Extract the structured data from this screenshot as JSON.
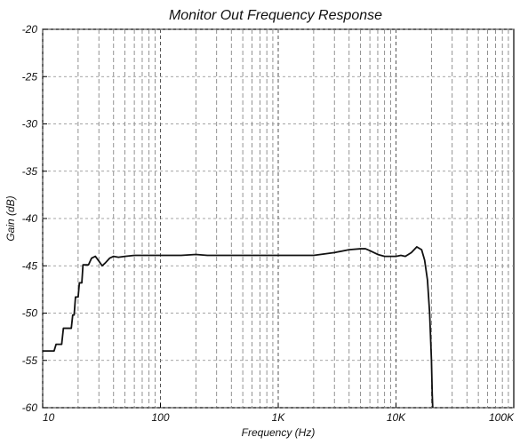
{
  "chart_data": {
    "type": "line",
    "title": "Monitor Out Frequency Response",
    "xlabel": "Frequency (Hz)",
    "ylabel": "Gain (dB)",
    "xscale": "log",
    "xlim": [
      10,
      100000
    ],
    "ylim": [
      -60,
      -20
    ],
    "grid": true,
    "x_ticks": [
      10,
      100,
      1000,
      10000,
      100000
    ],
    "x_tick_labels": [
      "10",
      "100",
      "1K",
      "10K",
      "100K"
    ],
    "y_ticks": [
      -20,
      -25,
      -30,
      -35,
      -40,
      -45,
      -50,
      -55,
      -60
    ],
    "y_tick_labels": [
      "-20",
      "-25",
      "-30",
      "-35",
      "-40",
      "-45",
      "-50",
      "-55",
      "-60"
    ],
    "series": [
      {
        "color": "#111111",
        "x": [
          10,
          12.5,
          13.0,
          14.5,
          15.0,
          16.5,
          17.5,
          18.0,
          18.5,
          19.0,
          20.0,
          20.5,
          21.5,
          22.0,
          23.0,
          24.5,
          26.0,
          28.0,
          30.0,
          32.0,
          34.0,
          37.0,
          40.0,
          44.0,
          50.0,
          60.0,
          80.0,
          100,
          150,
          200,
          250,
          300,
          500,
          1000,
          2000,
          3000,
          4000,
          5000,
          5500,
          6000,
          7000,
          8000,
          9000,
          10000,
          11000,
          12000,
          13500,
          15000,
          16500,
          17500,
          18500,
          19300,
          20000,
          20300,
          20500
        ],
        "y": [
          -54.0,
          -54.0,
          -53.3,
          -53.3,
          -51.6,
          -51.6,
          -51.6,
          -50.2,
          -50.2,
          -48.3,
          -48.3,
          -46.8,
          -46.8,
          -44.9,
          -44.9,
          -44.9,
          -44.2,
          -44.0,
          -44.5,
          -45.0,
          -44.7,
          -44.2,
          -44.0,
          -44.1,
          -44.0,
          -43.9,
          -43.9,
          -43.9,
          -43.9,
          -43.8,
          -43.9,
          -43.9,
          -43.9,
          -43.9,
          -43.9,
          -43.6,
          -43.3,
          -43.2,
          -43.2,
          -43.4,
          -43.8,
          -44.0,
          -44.0,
          -44.0,
          -43.9,
          -44.0,
          -43.6,
          -43.0,
          -43.3,
          -44.4,
          -46.5,
          -50.0,
          -55.0,
          -58.5,
          -60.0
        ]
      }
    ]
  }
}
